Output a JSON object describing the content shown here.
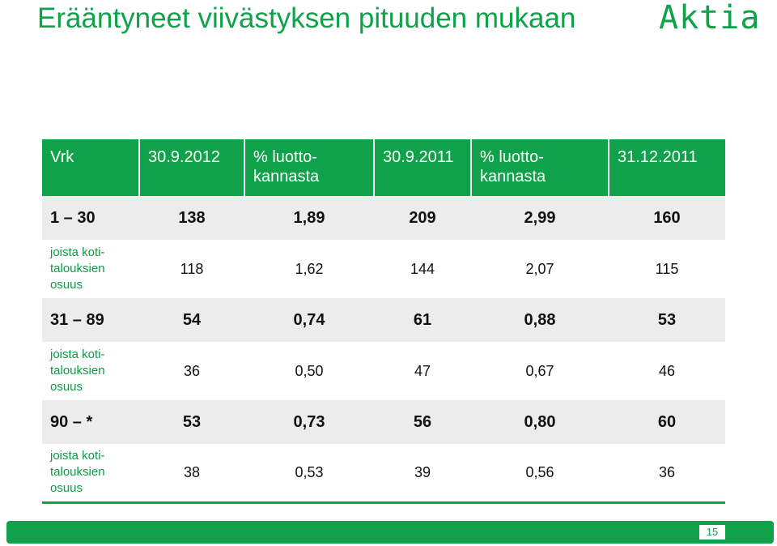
{
  "slide": {
    "title": "Erääntyneet viivästyksen pituuden mukaan",
    "logo_text": "Aktia",
    "page_number": "15",
    "accent_color": "#0fa24a"
  },
  "table": {
    "headers": [
      "Vrk",
      "30.9.2012",
      "% luotto-\nkannasta",
      "30.9.2011",
      "% luotto-\nkannasta",
      "31.12.2011"
    ],
    "rows": [
      {
        "type": "main",
        "label": "1 – 30",
        "values": [
          "138",
          "1,89",
          "209",
          "2,99",
          "160"
        ]
      },
      {
        "type": "sub",
        "label_lines": [
          "joista koti-",
          "talouksien",
          "osuus"
        ],
        "values": [
          "118",
          "1,62",
          "144",
          "2,07",
          "115"
        ]
      },
      {
        "type": "main",
        "label": "31 – 89",
        "values": [
          "54",
          "0,74",
          "61",
          "0,88",
          "53"
        ]
      },
      {
        "type": "sub",
        "label_lines": [
          "joista koti-",
          "talouksien",
          "osuus"
        ],
        "values": [
          "36",
          "0,50",
          "47",
          "0,67",
          "46"
        ]
      },
      {
        "type": "main",
        "label": "90 – *",
        "values": [
          "53",
          "0,73",
          "56",
          "0,80",
          "60"
        ]
      },
      {
        "type": "sub",
        "label_lines": [
          "joista koti-",
          "talouksien",
          "osuus"
        ],
        "values": [
          "38",
          "0,53",
          "39",
          "0,56",
          "36"
        ]
      }
    ]
  }
}
